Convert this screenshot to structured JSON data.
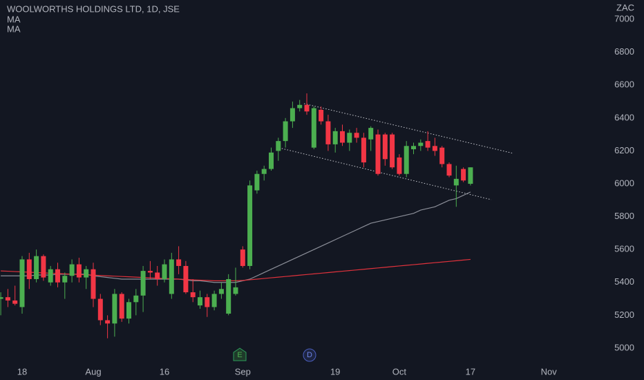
{
  "chart_data": {
    "type": "candlestick",
    "title": "WOOLWORTHS HOLDINGS LTD, 1D, JSE",
    "y_axis_label": "ZAC",
    "categories": [
      null,
      null,
      null,
      "18",
      null,
      null,
      null,
      null,
      null,
      null,
      null,
      null,
      null,
      "Aug",
      null,
      null,
      null,
      null,
      null,
      null,
      null,
      null,
      null,
      "16",
      null,
      null,
      null,
      null,
      null,
      null,
      null,
      null,
      null,
      null,
      "Sep",
      null,
      null,
      null,
      null,
      null,
      null,
      null,
      null,
      null,
      null,
      null,
      null,
      "19",
      null,
      null,
      null,
      null,
      null,
      null,
      null,
      null,
      "Oct",
      null,
      null,
      null,
      null,
      null,
      null,
      null,
      null,
      null,
      "17",
      null,
      null,
      null,
      null,
      null,
      null,
      null,
      null,
      null,
      null,
      "Nov"
    ],
    "open": [
      5300,
      5310,
      5290,
      5250,
      5540,
      5420,
      5560,
      5400,
      5480,
      5400,
      5440,
      5510,
      5430,
      5480,
      5300,
      5170,
      5150,
      5330,
      5180,
      5280,
      5320,
      5470,
      5460,
      5420,
      5330,
      5540,
      5500,
      5340,
      5260,
      5310,
      5250,
      5330,
      5210,
      5330,
      5600,
      5500,
      5960,
      6060,
      6090,
      6200,
      6260,
      6380,
      6460,
      6480,
      6220,
      6450,
      6380,
      6240,
      6320,
      6250,
      6310,
      6280,
      6270,
      6300,
      6300,
      6300,
      6160,
      6060,
      6210,
      6230,
      6260,
      6230,
      6220,
      6120,
      5990,
      6090,
      6000,
      null,
      null,
      null,
      null,
      null,
      null,
      null,
      null,
      null,
      null,
      null
    ],
    "high": [
      5340,
      5360,
      5380,
      5560,
      5580,
      5600,
      5570,
      5500,
      5520,
      5460,
      5540,
      5550,
      5500,
      5520,
      5330,
      5200,
      5360,
      5340,
      5300,
      5360,
      5500,
      5530,
      5500,
      5540,
      5580,
      5620,
      5530,
      5420,
      5350,
      5330,
      5350,
      5400,
      5450,
      5490,
      5620,
      6020,
      6080,
      6110,
      6220,
      6280,
      6400,
      6500,
      6510,
      6550,
      6470,
      6470,
      6420,
      6340,
      6360,
      6330,
      6340,
      6310,
      6350,
      6330,
      6310,
      6310,
      6180,
      6260,
      6250,
      6270,
      6320,
      6280,
      6230,
      6130,
      6110,
      6100,
      6100,
      null,
      null,
      null,
      null,
      null,
      null,
      null,
      null,
      null,
      null,
      null
    ],
    "low": [
      5200,
      5250,
      5260,
      5210,
      5360,
      5400,
      5410,
      5380,
      5370,
      5300,
      5400,
      5400,
      5360,
      5250,
      5140,
      5060,
      5070,
      5160,
      5150,
      5200,
      5220,
      5420,
      5380,
      5400,
      5300,
      5450,
      5330,
      5280,
      5240,
      5190,
      5230,
      5300,
      5200,
      5320,
      5490,
      5480,
      5940,
      6020,
      6080,
      6140,
      6220,
      6340,
      6440,
      6420,
      6210,
      6360,
      6200,
      6190,
      6230,
      6200,
      6250,
      6100,
      6200,
      6050,
      6110,
      6090,
      6050,
      6040,
      6180,
      6200,
      6200,
      6170,
      6100,
      6040,
      5860,
      6010,
      5990,
      null,
      null,
      null,
      null,
      null,
      null,
      null,
      null,
      null,
      null,
      null
    ],
    "close": [
      5310,
      5290,
      5270,
      5540,
      5420,
      5560,
      5430,
      5480,
      5400,
      5440,
      5510,
      5430,
      5480,
      5300,
      5170,
      5150,
      5330,
      5180,
      5280,
      5320,
      5470,
      5460,
      5420,
      5510,
      5540,
      5500,
      5340,
      5310,
      5310,
      5250,
      5330,
      5360,
      5420,
      5370,
      5500,
      5990,
      6060,
      6090,
      6190,
      6260,
      6380,
      6460,
      6480,
      6440,
      6460,
      6380,
      6240,
      6320,
      6250,
      6310,
      6280,
      6130,
      6340,
      6060,
      6150,
      6100,
      6060,
      6230,
      6230,
      6250,
      6220,
      6200,
      6120,
      6050,
      6030,
      6020,
      6100,
      null,
      null,
      null,
      null,
      null,
      null,
      null,
      null,
      null,
      null,
      null
    ],
    "up_color": "#4caf50",
    "down_color": "#f23645",
    "series": [
      {
        "name": "MA",
        "color": "#8c8f99",
        "values": [
          5440,
          5440,
          5440,
          5440,
          5440,
          5445,
          5445,
          5445,
          5450,
          5450,
          5450,
          5450,
          5450,
          5440,
          5435,
          5430,
          5425,
          5420,
          5420,
          5420,
          5420,
          5420,
          5420,
          5420,
          5420,
          5420,
          5415,
          5410,
          5410,
          5405,
          5400,
          5400,
          5400,
          5400,
          5410,
          5420,
          5440,
          5460,
          5480,
          5500,
          5520,
          5540,
          5560,
          5580,
          5600,
          5620,
          5640,
          5660,
          5680,
          5700,
          5720,
          5740,
          5760,
          5770,
          5780,
          5790,
          5800,
          5810,
          5820,
          5840,
          5850,
          5860,
          5880,
          5900,
          5910,
          5930,
          5950,
          null,
          null,
          null,
          null,
          null,
          null,
          null,
          null,
          null,
          null,
          null
        ]
      },
      {
        "name": "MA",
        "color": "#e0323c",
        "values": [
          5470,
          5468,
          5466,
          5464,
          5462,
          5460,
          5458,
          5456,
          5454,
          5452,
          5450,
          5448,
          5446,
          5444,
          5442,
          5440,
          5438,
          5436,
          5434,
          5432,
          5430,
          5428,
          5426,
          5424,
          5422,
          5420,
          5418,
          5416,
          5414,
          5412,
          5410,
          5410,
          5410,
          5410,
          5412,
          5416,
          5420,
          5424,
          5428,
          5432,
          5436,
          5440,
          5444,
          5448,
          5452,
          5456,
          5460,
          5464,
          5468,
          5472,
          5476,
          5480,
          5484,
          5488,
          5492,
          5496,
          5500,
          5504,
          5508,
          5512,
          5516,
          5520,
          5524,
          5528,
          5532,
          5536,
          5540,
          null,
          null,
          null,
          null,
          null,
          null,
          null,
          null,
          null,
          null,
          null
        ]
      }
    ],
    "events": [
      "E",
      "D"
    ],
    "ylim": [
      4924,
      7118
    ],
    "yticks": [
      5000,
      5200,
      5400,
      5600,
      5800,
      6000,
      6200,
      6400,
      6600,
      6800,
      7000
    ]
  }
}
